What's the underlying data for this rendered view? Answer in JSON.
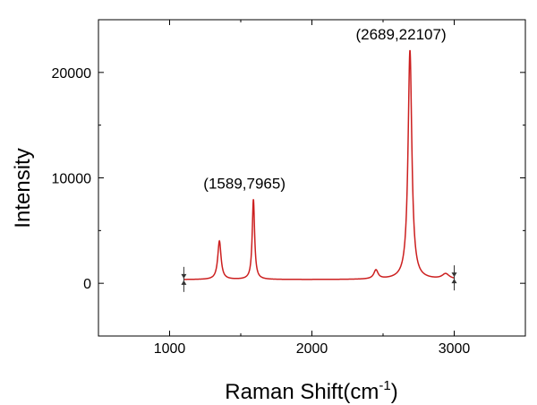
{
  "chart_data": {
    "type": "line",
    "title": "",
    "xlabel": "Raman Shift(cm",
    "xlabel_sup": "-1",
    "xlabel_suffix": ")",
    "ylabel": "Intensity",
    "xlim": [
      500,
      3500
    ],
    "ylim": [
      -5000,
      25000
    ],
    "x_ticks": [
      1000,
      2000,
      3000
    ],
    "x_tick_labels": [
      "1000",
      "2000",
      "3000"
    ],
    "y_ticks": [
      0,
      10000,
      20000
    ],
    "y_tick_labels": [
      "0",
      "10000",
      "20000"
    ],
    "grid": false,
    "legend": "none",
    "line_color": "#cc1f1f",
    "baseline": 350,
    "peaks": [
      {
        "center": 1350,
        "height": 3650,
        "width": 14
      },
      {
        "center": 1589,
        "height": 7600,
        "width": 10
      },
      {
        "center": 2450,
        "height": 850,
        "width": 18
      },
      {
        "center": 2689,
        "height": 21750,
        "width": 16
      },
      {
        "center": 2940,
        "height": 500,
        "width": 30
      }
    ],
    "range": [
      1100,
      3000
    ],
    "annotations": [
      {
        "text": "(1589,7965)",
        "x": 1589,
        "y": 7965
      },
      {
        "text": "(2689,22107)",
        "x": 2689,
        "y": 22107
      }
    ],
    "range_markers": [
      1100,
      3000
    ]
  }
}
